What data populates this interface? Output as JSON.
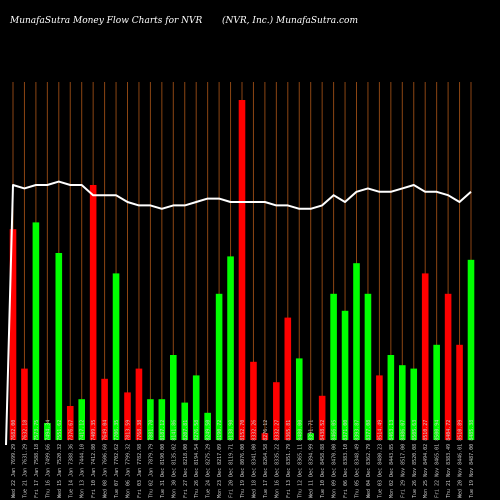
{
  "header": {
    "left": "MunafaSutra  Money Flow  Charts for NVR",
    "right": "(NVR, Inc.) MunafaSutra.com"
  },
  "colors": {
    "background": "#000000",
    "grid": "#8B4513",
    "up": "#00ff00",
    "down": "#ff0000",
    "line": "#ffffff",
    "label": "#cfcfcf"
  },
  "chart_data": {
    "type": "bar",
    "grid": "vertical",
    "series": [
      {
        "kind": "bar",
        "values": [
          62,
          21,
          64,
          5,
          55,
          10,
          12,
          75,
          18,
          49,
          14,
          21,
          12,
          12,
          25,
          11,
          19,
          8,
          43,
          54,
          100,
          23,
          2,
          17,
          36,
          24,
          2,
          13,
          43,
          38,
          52,
          43,
          19,
          25,
          22,
          21,
          49,
          28,
          43,
          28,
          53
        ],
        "colors": [
          "red",
          "red",
          "green",
          "green",
          "green",
          "red",
          "green",
          "red",
          "red",
          "green",
          "red",
          "red",
          "green",
          "green",
          "green",
          "green",
          "green",
          "green",
          "green",
          "green",
          "red",
          "red",
          "red",
          "red",
          "red",
          "green",
          "green",
          "red",
          "green",
          "green",
          "green",
          "green",
          "red",
          "green",
          "green",
          "green",
          "red",
          "green",
          "red",
          "red",
          "green"
        ]
      },
      {
        "kind": "line",
        "values": [
          75,
          74,
          75,
          75,
          76,
          75,
          75,
          72,
          72,
          72,
          70,
          69,
          69,
          68,
          69,
          69,
          70,
          71,
          71,
          70,
          70,
          70,
          70,
          69,
          69,
          68,
          68,
          69,
          72,
          70,
          73,
          74,
          73,
          73,
          74,
          75,
          73,
          73,
          72,
          70,
          73
        ]
      }
    ],
    "categories": [
      "Wed 22 Jan 7699.29 7682.00",
      "Tue 21 Jan 7631.29 7632.18",
      "Fri 17 Jan 7588.18 7573.75",
      "Thu 16 Jan 7499.66 7494.34",
      "Wed 15 Jan 7520.32 7551.62",
      "Tue 14 Jan 7388.36 7376.67",
      "Mon 13 Jan 7444.10 7417.12",
      "Fri 10 Jan 7412.80 7409.35",
      "Wed 08 Jan 7606.60 7649.04",
      "Tue 07 Jan 7702.62 7706.35",
      "Mon 06 Jan 7799.32 7813.59",
      "Fri 03 Jan 7782.98 7768.38",
      "Thu 02 Jan 7879.79 7881.70",
      "Tue 31 Dec 8190.00 8187.12",
      "Mon 30 Dec 8135.02 8141.86",
      "Fri 27 Dec 8218.00 8207.81",
      "Thu 26 Dec 8194.54 8276.58",
      "Tue 24 Dec 8275.29 8249.50",
      "Mon 23 Dec 8217.09 8190.72",
      "Fri 20 Dec 8119.71 8138.90",
      "Thu 19 Dec 8076.00 8152.70",
      "Wed 18 Dec 8341.00 8332.26",
      "Tue 17 Dec 8264.58 8276.12",
      "Mon 16 Dec 8335.22 8332.27",
      "Fri 13 Dec 8351.79 8365.81",
      "Thu 12 Dec 8365.11 8480.00",
      "Wed 11 Dec 8394.99 8391.71",
      "Tue 10 Dec 8458.88 8438.52",
      "Mon 09 Dec 8470.00 8466.05",
      "Fri 06 Dec 8383.10 8371.00",
      "Thu 05 Dec 8348.49 8393.87",
      "Wed 04 Dec 8362.79 8377.08",
      "Tue 03 Dec 8480.23 8514.49",
      "Mon 02 Dec 8443.85 8463.13",
      "Fri 29 Nov 8517.00 8486.07",
      "Tue 26 Nov 8520.08 8505.63",
      "Mon 25 Nov 8494.02 8510.27",
      "Fri 22 Nov 8465.01 8500.94",
      "Thu 21 Nov 8383.49 8404.72",
      "Wed 20 Nov 8446.01 8510.89",
      "Tue 19 Nov 8487.00 8485.38"
    ]
  }
}
